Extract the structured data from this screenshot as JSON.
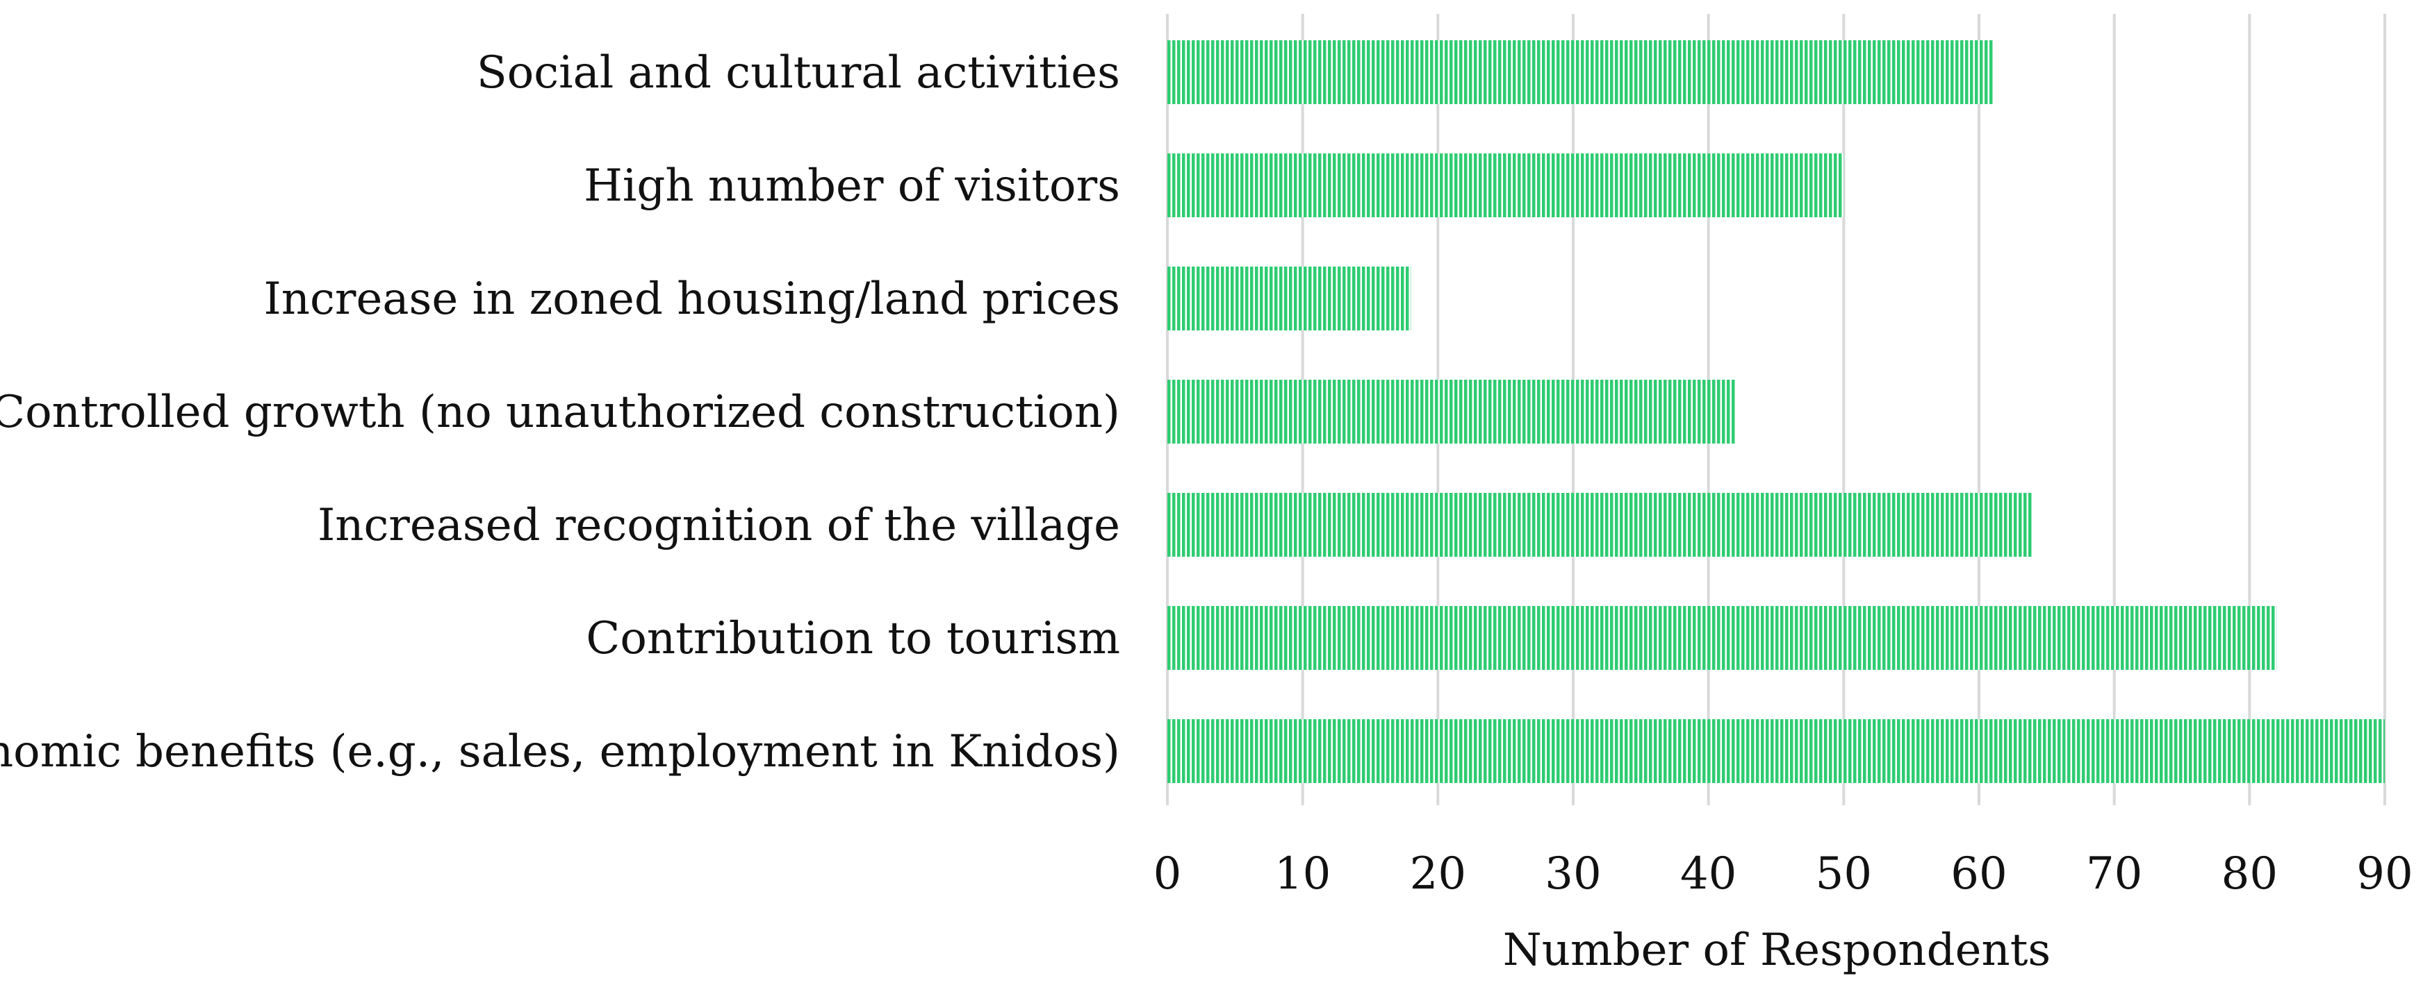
{
  "chart_data": {
    "type": "bar",
    "orientation": "horizontal",
    "categories": [
      "Social and cultural activities",
      "High number of visitors",
      "Increase in zoned housing/land prices",
      "Controlled growth (no unauthorized construction)",
      "Increased recognition of the village",
      "Contribution to tourism",
      "Economic benefits (e.g., sales, employment in Knidos)"
    ],
    "values": [
      61,
      50,
      18,
      42,
      64,
      82,
      90
    ],
    "xlabel": "Number of Respondents",
    "ylabel": "",
    "xlim": [
      0,
      90
    ],
    "xticks": [
      "0",
      "10",
      "20",
      "30",
      "40",
      "50",
      "60",
      "70",
      "80",
      "90"
    ],
    "grid": true,
    "legend": "none",
    "bar_color": "#2ecc71",
    "bar_pattern": "vertical-hatch",
    "grid_color": "#d9d9d9"
  }
}
